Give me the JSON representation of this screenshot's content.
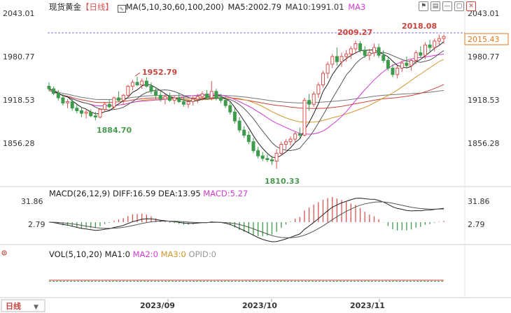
{
  "header": {
    "instrument": "现货黄金",
    "period_tag": "【日线】",
    "ma_label": "MA(5,10,30,60,100,200)",
    "ma5": "MA5:2002.79",
    "ma10": "MA10:1991.01",
    "ma3": "MA3"
  },
  "toolbar": {
    "icons": [
      "indicator-icon",
      "chart-type-icon",
      "minimize-icon",
      "restore-icon",
      "close-icon"
    ]
  },
  "price_axis": {
    "ticks_left": [
      "2043.01",
      "1980.77",
      "1918.53",
      "1856.28"
    ],
    "ticks_right": [
      "2043.01",
      "1980.77",
      "1918.53",
      "1856.28"
    ],
    "current_price": "2015.43"
  },
  "annotations": {
    "high_1": "1952.79",
    "low_1": "1884.70",
    "low_2": "1810.33",
    "high_2": "2009.27",
    "high_3": "2018.08"
  },
  "macd_panel": {
    "label": "MACD(26,12,9)",
    "diff": "DIFF:16.59",
    "dea": "DEA:13.95",
    "macd": "MACD:5.27",
    "ticks_left": [
      "31.86",
      "2.79"
    ],
    "ticks_right": [
      "31.86",
      "2.79"
    ]
  },
  "vol_panel": {
    "label": "VOL(5,10,20)",
    "ma1": "MA1:0",
    "ma2": "MA2:0",
    "ma3": "MA3:0",
    "opid": "OPID:0"
  },
  "bottom": {
    "period_button": "日线",
    "dates": [
      "2023/09",
      "2023/10",
      "2023/11"
    ]
  },
  "colors": {
    "up": "#d9534f",
    "down": "#3e9b4c",
    "ma_main": "#222222",
    "ma_slow": "#555555",
    "ma_magenta": "#d23bd2",
    "ma_red": "#c8443c",
    "ma_orange": "#d4952a",
    "ma_gray": "#777777",
    "price_line": "#8a6fd0",
    "current_label": "#e07a1c"
  },
  "chart_data": {
    "type": "candlestick",
    "ylim": [
      1790,
      2050
    ],
    "candles_ohlc": [
      [
        1938,
        1944,
        1930,
        1934
      ],
      [
        1934,
        1938,
        1924,
        1927
      ],
      [
        1927,
        1932,
        1916,
        1920
      ],
      [
        1920,
        1926,
        1908,
        1912
      ],
      [
        1912,
        1918,
        1904,
        1914
      ],
      [
        1914,
        1918,
        1900,
        1904
      ],
      [
        1904,
        1910,
        1896,
        1900
      ],
      [
        1900,
        1906,
        1890,
        1896
      ],
      [
        1896,
        1902,
        1888,
        1898
      ],
      [
        1898,
        1902,
        1890,
        1892
      ],
      [
        1892,
        1898,
        1885,
        1890
      ],
      [
        1890,
        1904,
        1888,
        1902
      ],
      [
        1902,
        1912,
        1898,
        1910
      ],
      [
        1910,
        1918,
        1904,
        1906
      ],
      [
        1906,
        1922,
        1902,
        1920
      ],
      [
        1920,
        1930,
        1914,
        1916
      ],
      [
        1916,
        1926,
        1910,
        1924
      ],
      [
        1924,
        1940,
        1920,
        1938
      ],
      [
        1938,
        1948,
        1932,
        1944
      ],
      [
        1944,
        1953,
        1938,
        1940
      ],
      [
        1940,
        1950,
        1934,
        1946
      ],
      [
        1946,
        1952,
        1936,
        1938
      ],
      [
        1938,
        1944,
        1926,
        1930
      ],
      [
        1930,
        1936,
        1918,
        1924
      ],
      [
        1924,
        1930,
        1914,
        1918
      ],
      [
        1918,
        1926,
        1910,
        1922
      ],
      [
        1922,
        1928,
        1914,
        1916
      ],
      [
        1916,
        1924,
        1910,
        1920
      ],
      [
        1920,
        1928,
        1912,
        1914
      ],
      [
        1914,
        1922,
        1906,
        1910
      ],
      [
        1910,
        1918,
        1904,
        1914
      ],
      [
        1914,
        1922,
        1908,
        1918
      ],
      [
        1918,
        1926,
        1912,
        1922
      ],
      [
        1922,
        1930,
        1916,
        1926
      ],
      [
        1926,
        1932,
        1918,
        1920
      ],
      [
        1920,
        1946,
        1916,
        1930
      ],
      [
        1930,
        1934,
        1916,
        1920
      ],
      [
        1920,
        1926,
        1912,
        1916
      ],
      [
        1916,
        1922,
        1904,
        1908
      ],
      [
        1908,
        1914,
        1894,
        1898
      ],
      [
        1898,
        1904,
        1880,
        1884
      ],
      [
        1884,
        1890,
        1866,
        1870
      ],
      [
        1870,
        1876,
        1858,
        1862
      ],
      [
        1862,
        1868,
        1848,
        1852
      ],
      [
        1852,
        1858,
        1834,
        1838
      ],
      [
        1838,
        1844,
        1826,
        1830
      ],
      [
        1830,
        1836,
        1822,
        1826
      ],
      [
        1826,
        1832,
        1820,
        1824
      ],
      [
        1824,
        1830,
        1816,
        1822
      ],
      [
        1822,
        1840,
        1810,
        1834
      ],
      [
        1834,
        1852,
        1830,
        1848
      ],
      [
        1848,
        1856,
        1840,
        1852
      ],
      [
        1852,
        1860,
        1846,
        1856
      ],
      [
        1856,
        1868,
        1850,
        1864
      ],
      [
        1864,
        1874,
        1858,
        1862
      ],
      [
        1862,
        1920,
        1860,
        1916
      ],
      [
        1916,
        1926,
        1900,
        1910
      ],
      [
        1910,
        1930,
        1906,
        1926
      ],
      [
        1926,
        1944,
        1920,
        1940
      ],
      [
        1940,
        1962,
        1936,
        1958
      ],
      [
        1958,
        1976,
        1950,
        1972
      ],
      [
        1972,
        1988,
        1966,
        1984
      ],
      [
        1984,
        1998,
        1970,
        1976
      ],
      [
        1976,
        1990,
        1968,
        1984
      ],
      [
        1984,
        1994,
        1976,
        1988
      ],
      [
        1988,
        2000,
        1980,
        1996
      ],
      [
        1996,
        2009,
        1988,
        2004
      ],
      [
        2004,
        2008,
        1990,
        1994
      ],
      [
        1994,
        2000,
        1982,
        1986
      ],
      [
        1986,
        1996,
        1978,
        1990
      ],
      [
        1990,
        2004,
        1984,
        1998
      ],
      [
        1998,
        2004,
        1982,
        1986
      ],
      [
        1986,
        1994,
        1974,
        1978
      ],
      [
        1978,
        1984,
        1962,
        1966
      ],
      [
        1966,
        1972,
        1952,
        1956
      ],
      [
        1956,
        1970,
        1950,
        1966
      ],
      [
        1966,
        1978,
        1960,
        1974
      ],
      [
        1974,
        1984,
        1966,
        1970
      ],
      [
        1970,
        1980,
        1962,
        1978
      ],
      [
        1978,
        1994,
        1972,
        1990
      ],
      [
        1990,
        2000,
        1982,
        1986
      ],
      [
        1986,
        2006,
        1980,
        2002
      ],
      [
        2002,
        2010,
        1992,
        1998
      ],
      [
        1998,
        2012,
        1992,
        2008
      ],
      [
        2008,
        2018,
        2000,
        2012
      ],
      [
        2012,
        2018,
        2004,
        2015
      ]
    ]
  }
}
